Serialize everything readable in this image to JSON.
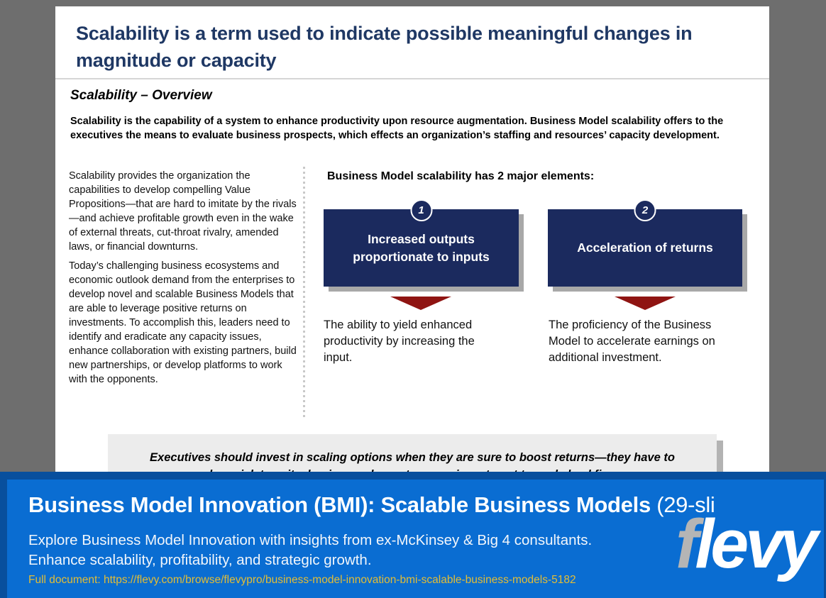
{
  "slide": {
    "title": "Scalability is a term used to indicate possible meaningful changes in magnitude or capacity",
    "section_heading": "Scalability – Overview",
    "intro": "Scalability is the capability of a system to enhance productivity upon resource augmentation.  Business Model scalability offers to the executives the means to evaluate business prospects, which effects an organization’s staffing and resources’ capacity development.",
    "left_column": {
      "paragraph1": "Scalability provides the organization the capabilities to develop compelling Value Propositions—that are hard to imitate by the rivals—and achieve profitable growth even in the wake of external threats, cut-throat rivalry, amended laws, or financial downturns.",
      "paragraph2": "Today’s challenging business ecosystems and economic outlook demand from the enterprises to develop novel and scalable Business Models that are able to leverage positive returns on investments.  To accomplish this, leaders need to identify and eradicate any capacity issues, enhance collaboration with existing partners, build new partnerships, or develop platforms to work with the opponents."
    },
    "elements_heading": "Business Model scalability has 2 major elements:",
    "elements": [
      {
        "number": "1",
        "label": "Increased outputs proportionate to inputs",
        "description": "The ability to yield enhanced productivity by increasing the input."
      },
      {
        "number": "2",
        "label": "Acceleration of returns",
        "description": "The proficiency of the Business Model to accelerate earnings on additional investment."
      }
    ],
    "quote": "Executives should invest in scaling options when they are sure to boost returns—they have to be quick to exit a business when returns on investment to scale backfire."
  },
  "banner": {
    "title_main": "Business Model Innovation (BMI):  Scalable Business Models",
    "title_suffix": " (29-sli",
    "subtitle_line1": "Explore Business Model Innovation with insights from ex-McKinsey & Big 4 consultants.",
    "subtitle_line2": "Enhance scalability, profitability, and strategic growth.",
    "link": "Full document: https://flevy.com/browse/flevypro/business-model-innovation-bmi-scalable-business-models-5182",
    "logo_f": "f",
    "logo_rest": "levy"
  },
  "colors": {
    "page_background": "#6e6e6e",
    "title_navy": "#1f3864",
    "element_box_navy": "#1b2a5e",
    "arrow_red": "#8f1412",
    "quote_box_gray": "#ececec",
    "banner_outer_blue": "#084f9d",
    "banner_inner_blue": "#0a6dd2",
    "link_yellow": "#e3bd35",
    "logo_f_gray": "#b5b5b5"
  }
}
